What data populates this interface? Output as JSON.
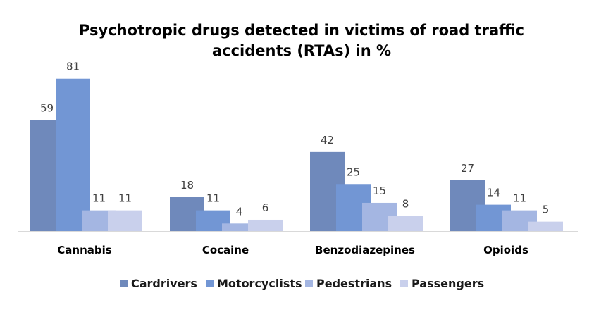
{
  "chart_data": {
    "type": "bar",
    "title_lines": [
      "Psychotropic drugs detected in victims of road traffic",
      "accidents (RTAs) in %"
    ],
    "categories": [
      "Cannabis",
      "Cocaine",
      "Benzodiazepines",
      "Opioids"
    ],
    "series": [
      {
        "name": "Cardrivers",
        "values": [
          59,
          18,
          42,
          27
        ],
        "color": "#6f89bb"
      },
      {
        "name": "Motorcyclists",
        "values": [
          81,
          11,
          25,
          14
        ],
        "color": "#7296d4"
      },
      {
        "name": "Pedestrians",
        "values": [
          11,
          4,
          15,
          11
        ],
        "color": "#a4b6e2"
      },
      {
        "name": "Passengers",
        "values": [
          11,
          6,
          8,
          5
        ],
        "color": "#c9d0ec"
      }
    ],
    "xlabel": "",
    "ylabel": "",
    "grid": false,
    "legend_position": "bottom"
  }
}
